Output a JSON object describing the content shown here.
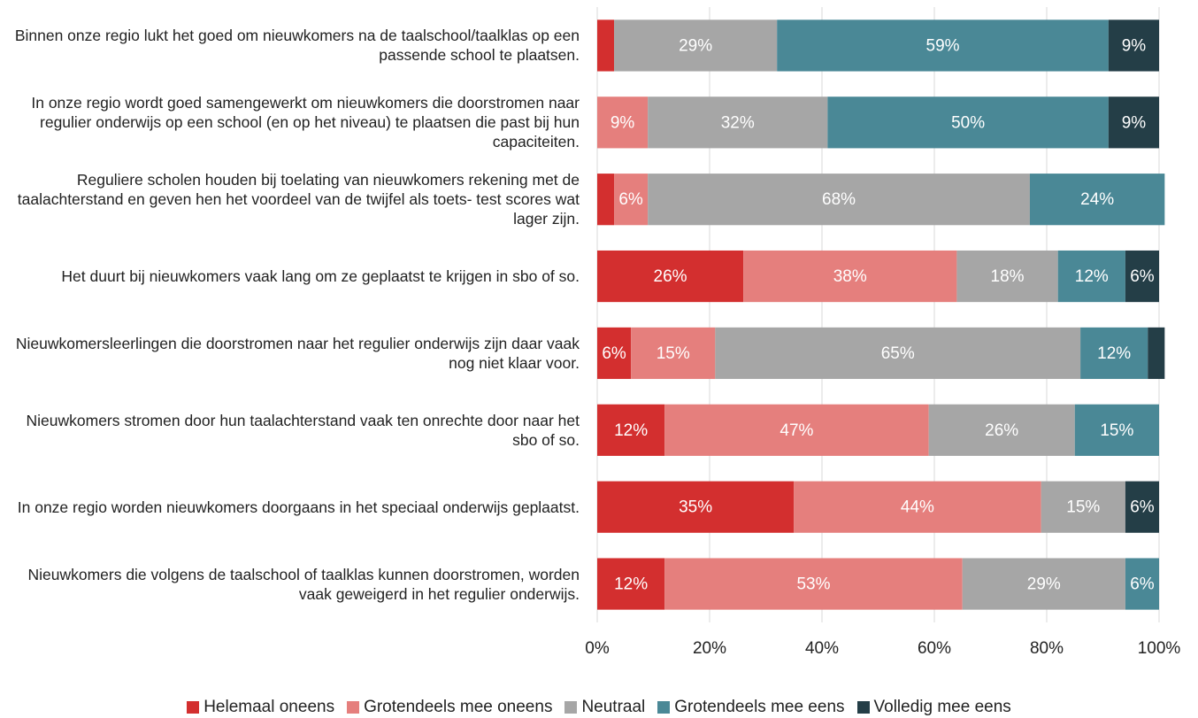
{
  "chart_data": {
    "type": "stacked-bar-horizontal",
    "categories": [
      "Binnen onze regio lukt het goed om nieuwkomers na de taalschool/taalklas op een passende school te plaatsen.",
      "In onze regio wordt goed samengewerkt om nieuwkomers die doorstromen naar regulier onderwijs op een school (en op het niveau) te plaatsen die past bij hun capaciteiten.",
      "Reguliere scholen houden bij toelating van nieuwkomers rekening met de taalachterstand en geven hen het voordeel van de twijfel als toets- test scores wat lager zijn.",
      "Het duurt bij nieuwkomers vaak lang om ze geplaatst te krijgen in sbo of so.",
      "Nieuwkomersleerlingen die doorstromen naar het regulier onderwijs zijn daar vaak nog niet klaar voor.",
      "Nieuwkomers stromen door hun taalachterstand vaak ten onrechte door naar het sbo of so.",
      "In onze regio worden nieuwkomers doorgaans in het speciaal onderwijs geplaatst.",
      "Nieuwkomers die volgens de taalschool of taalklas kunnen doorstromen, worden vaak geweigerd in het regulier onderwijs."
    ],
    "series": [
      {
        "name": "Helemaal oneens",
        "color": "#d32f2f",
        "values": [
          3,
          0,
          3,
          26,
          6,
          12,
          35,
          12
        ],
        "value_labels": [
          null,
          null,
          null,
          "26%",
          "6%",
          "12%",
          "35%",
          "12%"
        ]
      },
      {
        "name": "Grotendeels mee oneens",
        "color": "#e57f7d",
        "values": [
          0,
          9,
          6,
          38,
          15,
          47,
          44,
          53
        ],
        "value_labels": [
          null,
          "9%",
          "6%",
          "38%",
          "15%",
          "47%",
          "44%",
          "53%"
        ]
      },
      {
        "name": "Neutraal",
        "color": "#a6a6a6",
        "values": [
          29,
          32,
          68,
          18,
          65,
          26,
          15,
          29
        ],
        "value_labels": [
          "29%",
          "32%",
          "68%",
          "18%",
          "65%",
          "26%",
          "15%",
          "29%"
        ]
      },
      {
        "name": "Grotendeels mee eens",
        "color": "#4a8896",
        "values": [
          59,
          50,
          24,
          12,
          12,
          15,
          0,
          6
        ],
        "value_labels": [
          "59%",
          "50%",
          "24%",
          "12%",
          "12%",
          "15%",
          null,
          "6%"
        ]
      },
      {
        "name": "Volledig mee eens",
        "color": "#243e47",
        "values": [
          9,
          9,
          0,
          6,
          3,
          0,
          6,
          0
        ],
        "value_labels": [
          "9%",
          "9%",
          null,
          "6%",
          null,
          null,
          "6%",
          null
        ]
      }
    ],
    "xlim": [
      0,
      100
    ],
    "xticks": [
      {
        "value": 0,
        "label": "0%"
      },
      {
        "value": 20,
        "label": "20%"
      },
      {
        "value": 40,
        "label": "40%"
      },
      {
        "value": 60,
        "label": "60%"
      },
      {
        "value": 80,
        "label": "80%"
      },
      {
        "value": 100,
        "label": "100%"
      }
    ],
    "grid": true,
    "legend": "bottom"
  }
}
